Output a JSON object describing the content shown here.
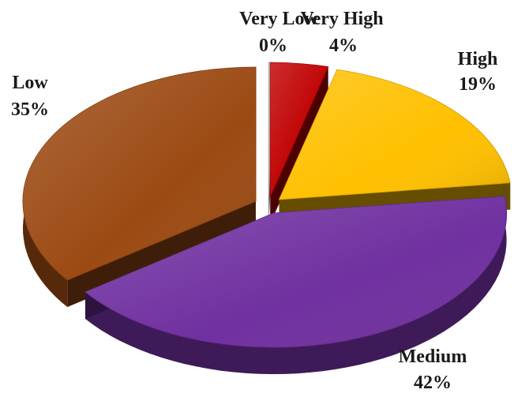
{
  "chart_data": {
    "type": "pie",
    "style": "3d-exploded",
    "title": "",
    "slices": [
      {
        "label": "Very Low",
        "value": 0,
        "value_label": "0%",
        "color": "#bfbfbf"
      },
      {
        "label": "Very High",
        "value": 4,
        "value_label": "4%",
        "color": "#c00000"
      },
      {
        "label": "High",
        "value": 19,
        "value_label": "19%",
        "color": "#ffc000"
      },
      {
        "label": "Medium",
        "value": 42,
        "value_label": "42%",
        "color": "#7030a0"
      },
      {
        "label": "Low",
        "value": 35,
        "value_label": "35%",
        "color": "#9c4a13"
      }
    ],
    "legend": "none"
  }
}
